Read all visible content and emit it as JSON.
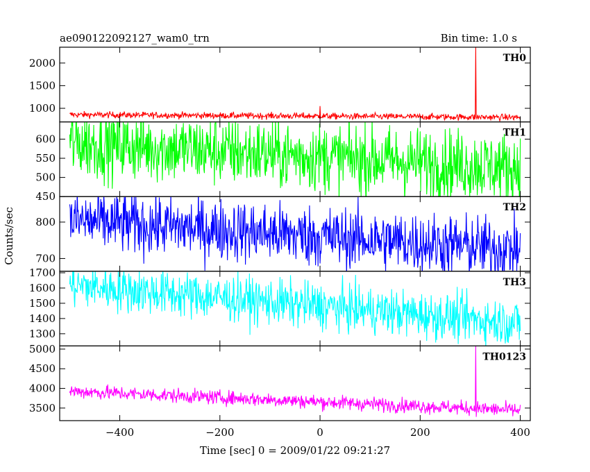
{
  "header": {
    "title": "ae090122092127_wam0_trn",
    "bin_time": "Bin time: 1.0 s"
  },
  "axes": {
    "xlabel": "Time [sec] 0 = 2009/01/22 09:21:27",
    "ylabel": "Counts/sec"
  },
  "chart_data": [
    {
      "type": "line",
      "name": "TH0",
      "color": "#ff0000",
      "xlim": [
        -520,
        420
      ],
      "ylim": [
        700,
        2350
      ],
      "yticks": [
        1000,
        1500,
        2000
      ],
      "xticks": [
        -400,
        -200,
        0,
        200,
        400
      ],
      "trend": [
        [
          -500,
          860
        ],
        [
          400,
          800
        ]
      ],
      "noise": 35,
      "spikes": [
        [
          311,
          2350
        ],
        [
          0,
          1050
        ]
      ]
    },
    {
      "type": "line",
      "name": "TH1",
      "color": "#00ff00",
      "xlim": [
        -520,
        420
      ],
      "ylim": [
        450,
        645
      ],
      "yticks": [
        450,
        500,
        550,
        600
      ],
      "xticks": [
        -400,
        -200,
        0,
        200,
        400
      ],
      "trend": [
        [
          -500,
          590
        ],
        [
          400,
          525
        ]
      ],
      "noise": 45,
      "spikes": []
    },
    {
      "type": "line",
      "name": "TH2",
      "color": "#0000ff",
      "xlim": [
        -520,
        420
      ],
      "ylim": [
        665,
        870
      ],
      "yticks": [
        700,
        800
      ],
      "xticks": [
        -400,
        -200,
        0,
        200,
        400
      ],
      "trend": [
        [
          -500,
          805
        ],
        [
          400,
          725
        ]
      ],
      "noise": 42,
      "spikes": []
    },
    {
      "type": "line",
      "name": "TH3",
      "color": "#00ffff",
      "xlim": [
        -520,
        420
      ],
      "ylim": [
        1220,
        1710
      ],
      "yticks": [
        1300,
        1400,
        1500,
        1600,
        1700
      ],
      "xticks": [
        -400,
        -200,
        0,
        200,
        400
      ],
      "trend": [
        [
          -500,
          1620
        ],
        [
          400,
          1370
        ]
      ],
      "noise": 75,
      "spikes": []
    },
    {
      "type": "line",
      "name": "TH0123",
      "color": "#ff00ff",
      "xlim": [
        -520,
        420
      ],
      "ylim": [
        3180,
        5080
      ],
      "yticks": [
        3500,
        4000,
        4500,
        5000
      ],
      "xticks": [
        -400,
        -200,
        0,
        200,
        400
      ],
      "xticklabels": [
        "−400",
        "−200",
        "0",
        "200",
        "400"
      ],
      "trend": [
        [
          -500,
          3930
        ],
        [
          400,
          3440
        ]
      ],
      "noise": 90,
      "spikes": [
        [
          311,
          5080
        ]
      ]
    }
  ]
}
